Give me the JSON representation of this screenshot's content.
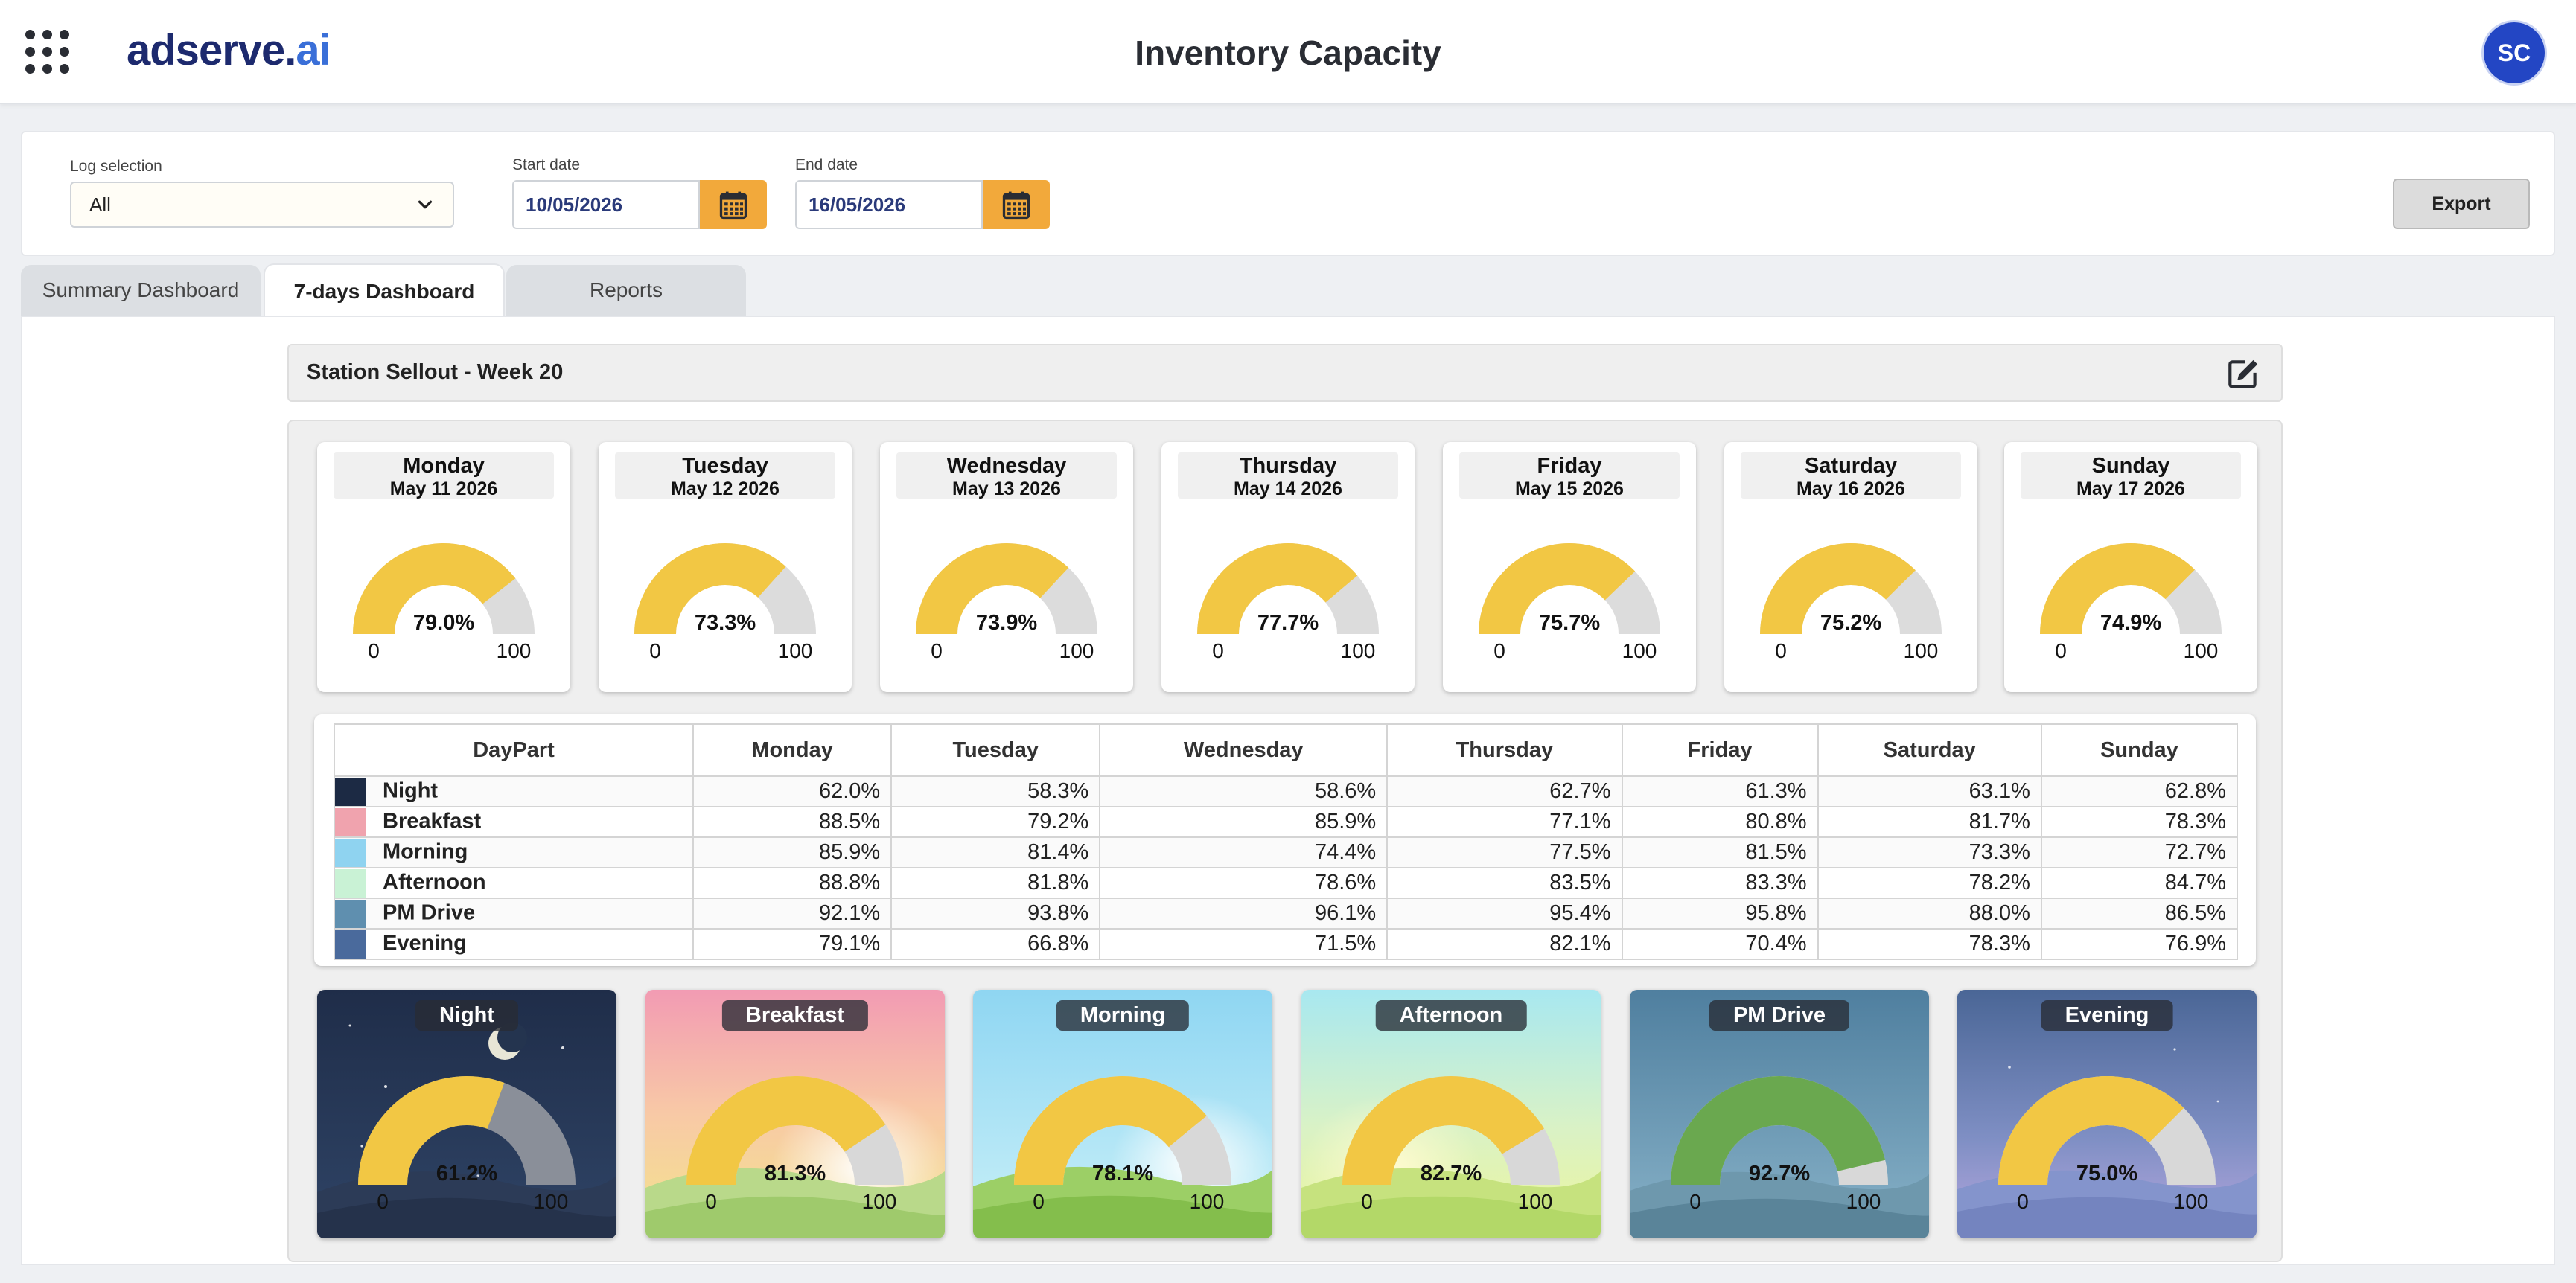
{
  "header": {
    "logo_main": "adserve.",
    "logo_ai": "ai",
    "title": "Inventory Capacity",
    "avatar_initials": "SC"
  },
  "filters": {
    "log_label": "Log selection",
    "log_value": "All",
    "start_label": "Start date",
    "start_value": "10/05/2026",
    "end_label": "End date",
    "end_value": "16/05/2026",
    "export_label": "Export"
  },
  "tabs": [
    {
      "label": "Summary Dashboard",
      "active": false
    },
    {
      "label": "7-days Dashboard",
      "active": true
    },
    {
      "label": "Reports",
      "active": false
    }
  ],
  "section": {
    "title": "Station Sellout - Week 20"
  },
  "gauge_scale": {
    "min": "0",
    "max": "100"
  },
  "days": [
    {
      "name": "Monday",
      "date": "May 11 2026",
      "value": 79.0,
      "label": "79.0%"
    },
    {
      "name": "Tuesday",
      "date": "May 12 2026",
      "value": 73.3,
      "label": "73.3%"
    },
    {
      "name": "Wednesday",
      "date": "May 13 2026",
      "value": 73.9,
      "label": "73.9%"
    },
    {
      "name": "Thursday",
      "date": "May 14 2026",
      "value": 77.7,
      "label": "77.7%"
    },
    {
      "name": "Friday",
      "date": "May 15 2026",
      "value": 75.7,
      "label": "75.7%"
    },
    {
      "name": "Saturday",
      "date": "May 16 2026",
      "value": 75.2,
      "label": "75.2%"
    },
    {
      "name": "Sunday",
      "date": "May 17 2026",
      "value": 74.9,
      "label": "74.9%"
    }
  ],
  "table": {
    "headers": [
      "DayPart",
      "Monday",
      "Tuesday",
      "Wednesday",
      "Thursday",
      "Friday",
      "Saturday",
      "Sunday"
    ],
    "rows": [
      {
        "name": "Night",
        "color": "#1c2a44",
        "values": [
          "62.0%",
          "58.3%",
          "58.6%",
          "62.7%",
          "61.3%",
          "63.1%",
          "62.8%"
        ]
      },
      {
        "name": "Breakfast",
        "color": "#f0a3ae",
        "values": [
          "88.5%",
          "79.2%",
          "85.9%",
          "77.1%",
          "80.8%",
          "81.7%",
          "78.3%"
        ]
      },
      {
        "name": "Morning",
        "color": "#8fd3f0",
        "values": [
          "85.9%",
          "81.4%",
          "74.4%",
          "77.5%",
          "81.5%",
          "73.3%",
          "72.7%"
        ]
      },
      {
        "name": "Afternoon",
        "color": "#c9f2d5",
        "values": [
          "88.8%",
          "81.8%",
          "78.6%",
          "83.5%",
          "83.3%",
          "78.2%",
          "84.7%"
        ]
      },
      {
        "name": "PM Drive",
        "color": "#5f8faf",
        "values": [
          "92.1%",
          "93.8%",
          "96.1%",
          "95.4%",
          "95.8%",
          "88.0%",
          "86.5%"
        ]
      },
      {
        "name": "Evening",
        "color": "#4a6a9c",
        "values": [
          "79.1%",
          "66.8%",
          "71.5%",
          "82.1%",
          "70.4%",
          "78.3%",
          "76.9%"
        ]
      }
    ]
  },
  "dayparts": [
    {
      "name": "Night",
      "value": 61.2,
      "label": "61.2%",
      "theme": "night",
      "gauge_color": "#f2c744",
      "scale_color": "#111111"
    },
    {
      "name": "Breakfast",
      "value": 81.3,
      "label": "81.3%",
      "theme": "breakfast",
      "gauge_color": "#f2c744",
      "scale_color": "#111111"
    },
    {
      "name": "Morning",
      "value": 78.1,
      "label": "78.1%",
      "theme": "morning",
      "gauge_color": "#f2c744",
      "scale_color": "#111111"
    },
    {
      "name": "Afternoon",
      "value": 82.7,
      "label": "82.7%",
      "theme": "afternoon",
      "gauge_color": "#f2c744",
      "scale_color": "#111111"
    },
    {
      "name": "PM Drive",
      "value": 92.7,
      "label": "92.7%",
      "theme": "pmdrive",
      "gauge_color": "#6aa84f",
      "scale_color": "#111111"
    },
    {
      "name": "Evening",
      "value": 75.0,
      "label": "75.0%",
      "theme": "evening",
      "gauge_color": "#f2c744",
      "scale_color": "#111111"
    }
  ],
  "colors": {
    "gauge_fill": "#f2c744",
    "gauge_track": "#dcdcdc",
    "accent_orange": "#f2a93b",
    "brand_navy": "#1d2a6e"
  }
}
